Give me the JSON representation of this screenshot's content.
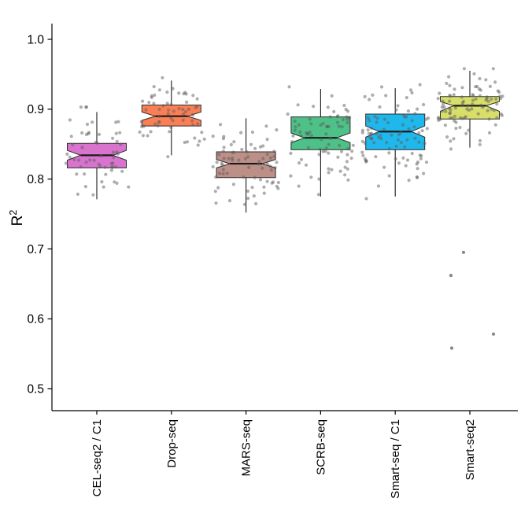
{
  "figure": {
    "ylabel": "R²",
    "ylabel_base": "R",
    "ylabel_exponent": "2",
    "xlabel": ""
  },
  "style": {
    "axis_color": "#000000",
    "box_stroke": "#2b2b2b",
    "median_color": "#1a1a1a",
    "whisker_color": "#1a1a1a",
    "point_color": "#5e5e5e",
    "point_opacity": 0.5,
    "background": "#ffffff"
  },
  "chart_data": {
    "type": "boxplot",
    "subtype": "notched-boxplot-with-jittered-points",
    "title": "",
    "xlabel": "",
    "ylabel": "R²",
    "ylim": [
      0.468,
      1.02
    ],
    "grid": false,
    "legend": false,
    "y_ticks": [
      {
        "label": "1.0",
        "value": 1.0
      },
      {
        "label": "0.9",
        "value": 0.9
      },
      {
        "label": "0.8",
        "value": 0.8
      },
      {
        "label": "0.7",
        "value": 0.7
      },
      {
        "label": "0.6",
        "value": 0.6
      },
      {
        "label": "0.5",
        "value": 0.5
      }
    ],
    "categories": [
      "CEL-seq2 / C1",
      "Drop-seq",
      "MARS-seq",
      "SCRB-seq",
      "Smart-seq / C1",
      "Smart-seq2"
    ],
    "series": [
      {
        "name": "CEL-seq2 / C1",
        "color": "#D873CE",
        "whisker_low": 0.771,
        "q1": 0.816,
        "median": 0.834,
        "q3": 0.851,
        "whisker_high": 0.896,
        "notch_low": 0.827,
        "notch_high": 0.841,
        "n_points": 58,
        "point_sd": 0.027,
        "point_min": 0.768,
        "point_max": 0.903,
        "outliers": []
      },
      {
        "name": "Drop-seq",
        "color": "#FA7F55",
        "whisker_low": 0.834,
        "q1": 0.876,
        "median": 0.89,
        "q3": 0.906,
        "whisker_high": 0.941,
        "notch_low": 0.884,
        "notch_high": 0.896,
        "n_points": 62,
        "point_sd": 0.023,
        "point_min": 0.832,
        "point_max": 0.945,
        "outliers": []
      },
      {
        "name": "MARS-seq",
        "color": "#BC8F87",
        "whisker_low": 0.752,
        "q1": 0.802,
        "median": 0.822,
        "q3": 0.839,
        "whisker_high": 0.887,
        "notch_low": 0.816,
        "notch_high": 0.828,
        "n_points": 74,
        "point_sd": 0.029,
        "point_min": 0.752,
        "point_max": 0.908,
        "outliers": []
      },
      {
        "name": "SCRB-seq",
        "color": "#4DC188",
        "whisker_low": 0.775,
        "q1": 0.842,
        "median": 0.859,
        "q3": 0.889,
        "whisker_high": 0.929,
        "notch_low": 0.852,
        "notch_high": 0.866,
        "n_points": 78,
        "point_sd": 0.035,
        "point_min": 0.757,
        "point_max": 0.932,
        "outliers": []
      },
      {
        "name": "Smart-seq / C1",
        "color": "#1FB8EC",
        "whisker_low": 0.775,
        "q1": 0.842,
        "median": 0.868,
        "q3": 0.893,
        "whisker_high": 0.93,
        "notch_low": 0.86,
        "notch_high": 0.876,
        "n_points": 95,
        "point_sd": 0.037,
        "point_min": 0.772,
        "point_max": 0.935,
        "outliers": []
      },
      {
        "name": "Smart-seq2",
        "color": "#D8DE6A",
        "whisker_low": 0.845,
        "q1": 0.886,
        "median": 0.905,
        "q3": 0.918,
        "whisker_high": 0.955,
        "notch_low": 0.897,
        "notch_high": 0.911,
        "n_points": 95,
        "point_sd": 0.025,
        "point_min": 0.843,
        "point_max": 0.958,
        "outliers": [
          {
            "dx": -8,
            "value": 0.695
          },
          {
            "dx": -24,
            "value": 0.662
          },
          {
            "dx": 30,
            "value": 0.578
          },
          {
            "dx": -23,
            "value": 0.558
          }
        ]
      }
    ]
  }
}
